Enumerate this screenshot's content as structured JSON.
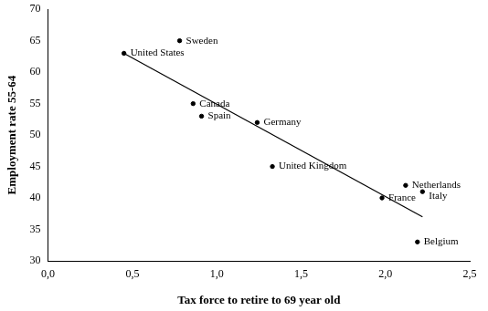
{
  "chart_data": {
    "type": "scatter",
    "x_label": "Tax force to retire to 69 year old",
    "y_label": "Employment rate 55-64",
    "points": [
      {
        "name": "United States",
        "x": 0.45,
        "y": 63
      },
      {
        "name": "Sweden",
        "x": 0.78,
        "y": 65
      },
      {
        "name": "Canada",
        "x": 0.86,
        "y": 55
      },
      {
        "name": "Spain",
        "x": 0.91,
        "y": 53
      },
      {
        "name": "Germany",
        "x": 1.24,
        "y": 52
      },
      {
        "name": "United Kingdom",
        "x": 1.33,
        "y": 45
      },
      {
        "name": "Netherlands",
        "x": 2.12,
        "y": 42
      },
      {
        "name": "Italy",
        "x": 2.22,
        "y": 41
      },
      {
        "name": "France",
        "x": 1.98,
        "y": 40
      },
      {
        "name": "Belgium",
        "x": 2.19,
        "y": 33
      }
    ],
    "trend_line": {
      "x": [
        0.45,
        2.22
      ],
      "y": [
        63,
        37
      ]
    },
    "color": "#000000",
    "marker": "circle",
    "data_labels": true,
    "xlim": [
      0,
      2.5
    ],
    "xticks": [
      {
        "value": 0,
        "label": "0,0"
      },
      {
        "value": 0.5,
        "label": "0,5"
      },
      {
        "value": 1,
        "label": "1,0"
      },
      {
        "value": 1.5,
        "label": "1,5"
      },
      {
        "value": 2,
        "label": "2,0"
      },
      {
        "value": 2.5,
        "label": "2,5"
      }
    ],
    "ylim": [
      30,
      70
    ],
    "yticks": [
      30,
      35,
      40,
      45,
      50,
      55,
      60,
      65,
      70
    ],
    "grid": false,
    "legend": "none"
  }
}
